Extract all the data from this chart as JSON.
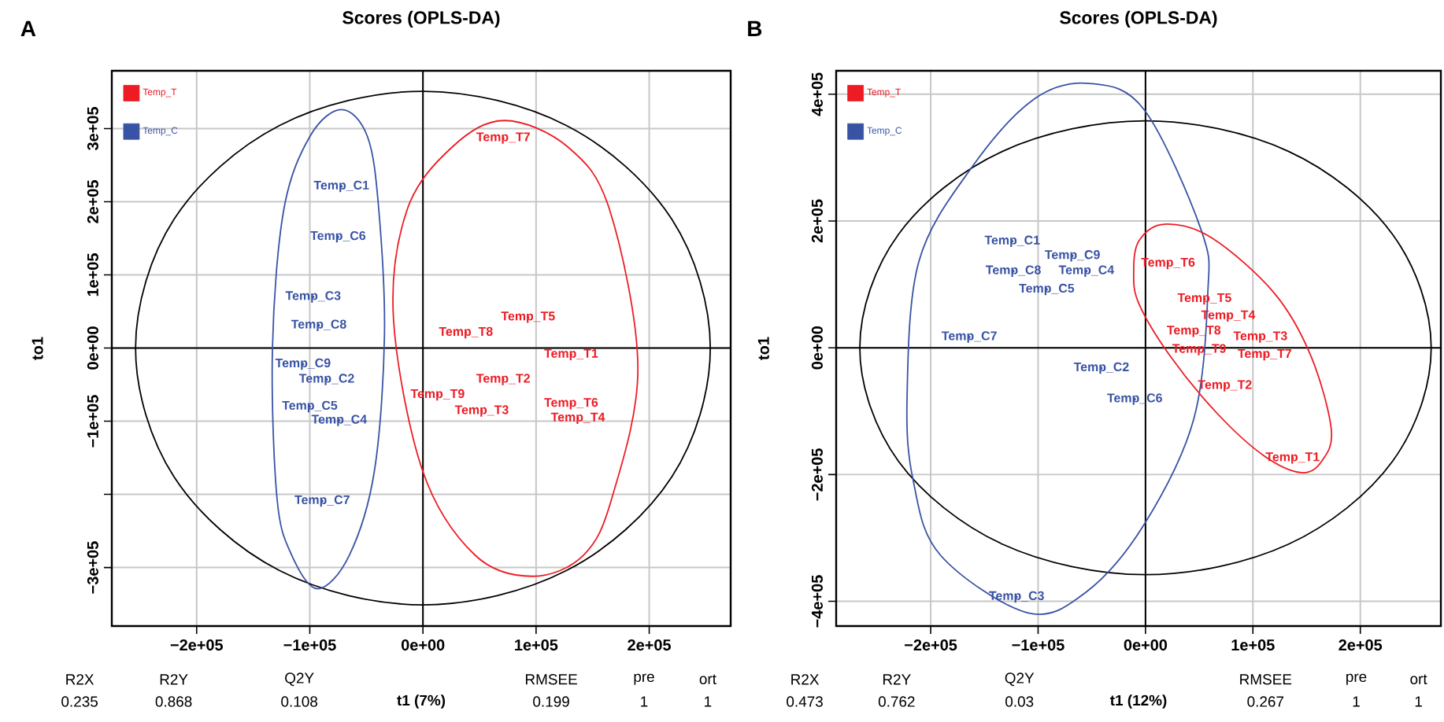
{
  "chart_data": [
    {
      "type": "scatter",
      "title": "Scores (OPLS-DA)",
      "xlabel": "t1 (7%)",
      "ylabel": "to1",
      "xlim": [
        -275000,
        272000
      ],
      "ylim": [
        -380000,
        379000
      ],
      "xticks": [
        {
          "value": -200000,
          "label": "−2e+05"
        },
        {
          "value": -100000,
          "label": "−1e+05"
        },
        {
          "value": 0,
          "label": "0e+00"
        },
        {
          "value": 100000,
          "label": "1e+05"
        },
        {
          "value": 200000,
          "label": "2e+05"
        }
      ],
      "yticks": [
        {
          "value": -300000,
          "label": "−3e+05"
        },
        {
          "value": -200000,
          "label": null
        },
        {
          "value": -100000,
          "label": "−1e+05"
        },
        {
          "value": 0,
          "label": "0e+00"
        },
        {
          "value": 100000,
          "label": "1e+05"
        },
        {
          "value": 200000,
          "label": "2e+05"
        },
        {
          "value": 300000,
          "label": "3e+05"
        }
      ],
      "grid": true,
      "legend": "top left",
      "marker": "circle",
      "annotations": [
        "A",
        "R2X",
        "0.235",
        "R2Y",
        "0.868",
        "Q2Y",
        "0.108",
        "RMSEE",
        "0.199",
        "pre",
        "1",
        "ort",
        "1"
      ],
      "series": [
        {
          "name": "Temp_T",
          "color": "#ed1c24",
          "x": [
            71000,
            93000,
            38000,
            131000,
            71000,
            13000,
            52000,
            131000,
            137000
          ],
          "values": [
            287000,
            42000,
            21000,
            -9000,
            -43000,
            -64000,
            -86000,
            -76000,
            -96000
          ],
          "value_labels": [
            "Temp_T7",
            "Temp_T5",
            "Temp_T8",
            "Temp_T1",
            "Temp_T2",
            "Temp_T9",
            "Temp_T3",
            "Temp_T6",
            "Temp_T4"
          ]
        },
        {
          "name": "Temp_C",
          "color": "#3953a4",
          "x": [
            -72000,
            -75000,
            -97000,
            -92000,
            -106000,
            -85000,
            -100000,
            -74000,
            -89000
          ],
          "values": [
            221000,
            152000,
            70000,
            31000,
            -22000,
            -43000,
            -80000,
            -99000,
            -209000
          ],
          "value_labels": [
            "Temp_C1",
            "Temp_C6",
            "Temp_C3",
            "Temp_C8",
            "Temp_C9",
            "Temp_C2",
            "Temp_C5",
            "Temp_C4",
            "Temp_C7"
          ]
        }
      ]
    },
    {
      "type": "scatter",
      "title": "Scores (OPLS-DA)",
      "xlabel": "t1 (12%)",
      "ylabel": "to1",
      "xlim": [
        -288000,
        275000
      ],
      "ylim": [
        -439000,
        437000
      ],
      "xticks": [
        {
          "value": -200000,
          "label": "−2e+05"
        },
        {
          "value": -100000,
          "label": "−1e+05"
        },
        {
          "value": 0,
          "label": "0e+00"
        },
        {
          "value": 100000,
          "label": "1e+05"
        },
        {
          "value": 200000,
          "label": "2e+05"
        }
      ],
      "yticks": [
        {
          "value": -400000,
          "label": "−4e+05"
        },
        {
          "value": -200000,
          "label": "−2e+05"
        },
        {
          "value": 0,
          "label": "0e+00"
        },
        {
          "value": 200000,
          "label": "2e+05"
        },
        {
          "value": 400000,
          "label": "4e+05"
        }
      ],
      "grid": true,
      "legend": "top left",
      "marker": "circle",
      "annotations": [
        "B",
        "R2X",
        "0.473",
        "R2Y",
        "0.762",
        "Q2Y",
        "0.03",
        "RMSEE",
        "0.267",
        "pre",
        "1",
        "ort",
        "1"
      ],
      "series": [
        {
          "name": "Temp_T",
          "color": "#ed1c24",
          "x": [
            21000,
            55000,
            77000,
            45000,
            107000,
            50000,
            111000,
            74000,
            137000
          ],
          "values": [
            133000,
            77000,
            50000,
            26000,
            17000,
            -3000,
            -11000,
            -60000,
            -174000
          ],
          "value_labels": [
            "Temp_T6",
            "Temp_T5",
            "Temp_T4",
            "Temp_T8",
            "Temp_T3",
            "Temp_T9",
            "Temp_T7",
            "Temp_T2",
            "Temp_T1"
          ]
        },
        {
          "name": "Temp_C",
          "color": "#3953a4",
          "x": [
            -124000,
            -68000,
            -123000,
            -55000,
            -92000,
            -164000,
            -41000,
            -10000,
            -120000
          ],
          "values": [
            168000,
            145000,
            121000,
            121000,
            92000,
            17000,
            -32000,
            -81000,
            -393000
          ],
          "value_labels": [
            "Temp_C1",
            "Temp_C9",
            "Temp_C8",
            "Temp_C4",
            "Temp_C5",
            "Temp_C7",
            "Temp_C2",
            "Temp_C6",
            "Temp_C3"
          ]
        }
      ]
    }
  ]
}
